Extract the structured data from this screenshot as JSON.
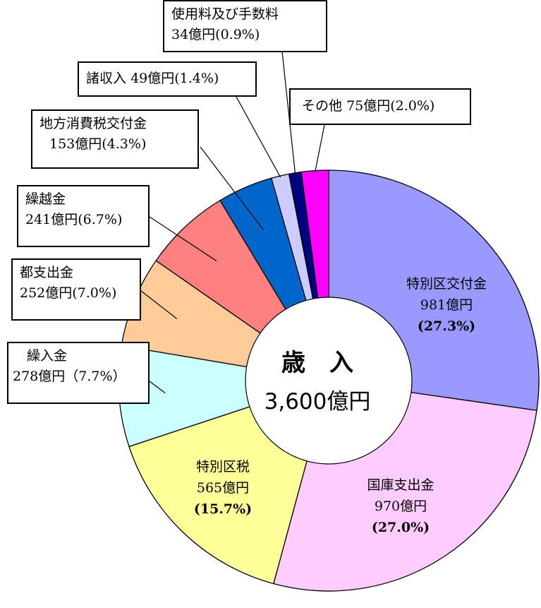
{
  "chart_data": {
    "type": "pie",
    "variant": "donut",
    "center_title": "歳　入",
    "center_total": "3,600億円",
    "start": "top, clockwise",
    "slices": [
      {
        "label": "特別区交付金",
        "value": 981,
        "value_text": "981億円",
        "percent_text": "(27.3%)",
        "color": "#9999ff"
      },
      {
        "label": "国庫支出金",
        "value": 970,
        "value_text": "970億円",
        "percent_text": "(27.0%)",
        "color": "#ffccff"
      },
      {
        "label": "特別区税",
        "value": 565,
        "value_text": "565億円",
        "percent_text": "(15.7%)",
        "color": "#ffff99"
      },
      {
        "label": "繰入金",
        "value": 278,
        "value_text": "278億円（7.7%）",
        "color": "#ccffff"
      },
      {
        "label": "都支出金",
        "value": 252,
        "value_text": "252億円(7.0%)",
        "color": "#ffcc99"
      },
      {
        "label": "繰越金",
        "value": 241,
        "value_text": "241億円(6.7%)",
        "color": "#ff8080"
      },
      {
        "label": "地方消費税交付金",
        "value": 153,
        "value_text": "153億円(4.3%)",
        "color": "#0066cc"
      },
      {
        "label": "諸収入",
        "value": 49,
        "value_text": "49億円(1.4%)",
        "color": "#ccccff"
      },
      {
        "label": "使用料及び手数料",
        "value": 34,
        "value_text": "34億円(0.9%)",
        "color": "#000080"
      },
      {
        "label": "その他",
        "value": 75,
        "value_text": "75億円(2.0%)",
        "color": "#ff00ff"
      }
    ]
  }
}
